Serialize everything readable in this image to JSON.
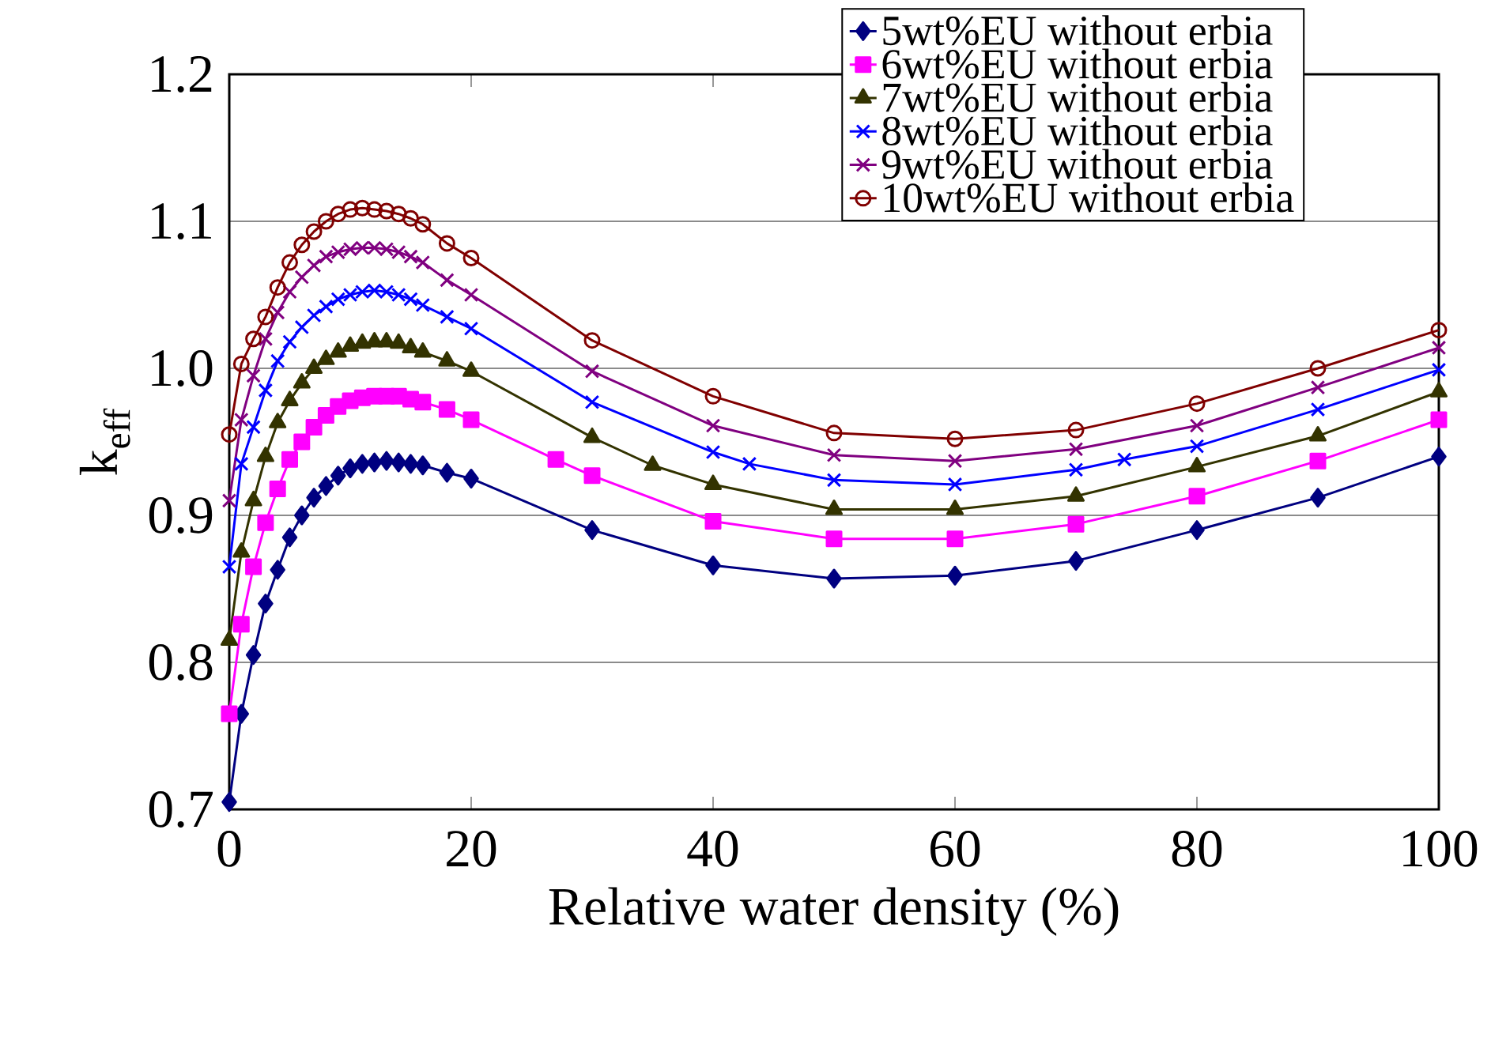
{
  "chart_data": {
    "type": "line",
    "xlabel": "Relative water density (%)",
    "ylabel": "k$_{eff}$",
    "xlim": [
      0,
      100
    ],
    "ylim": [
      0.7,
      1.2
    ],
    "xticks": [
      0,
      20,
      40,
      60,
      80,
      100
    ],
    "yticks": [
      0.7,
      0.8,
      0.9,
      {
        "value": 1,
        "label": "1.0"
      },
      1.1,
      1.2
    ],
    "grid": "y",
    "legend": "top right",
    "line_style": "solid",
    "series": [
      {
        "name": "5wt%EU without erbia",
        "color": "#000080",
        "marker": "diamond",
        "x": [
          0,
          1,
          2,
          3,
          4,
          5,
          6,
          7,
          8,
          9,
          10,
          11,
          12,
          13,
          14,
          15,
          16,
          18,
          20,
          30,
          40,
          50,
          60,
          70,
          80,
          90,
          100
        ],
        "values": [
          0.705,
          0.765,
          0.805,
          0.84,
          0.863,
          0.885,
          0.9,
          0.912,
          0.92,
          0.927,
          0.932,
          0.935,
          0.936,
          0.937,
          0.936,
          0.935,
          0.934,
          0.929,
          0.925,
          0.89,
          0.866,
          0.857,
          0.859,
          0.869,
          0.89,
          0.912,
          0.94
        ]
      },
      {
        "name": "6wt%EU without erbia",
        "color": "#ff00ff",
        "marker": "square",
        "x": [
          0,
          1,
          2,
          3,
          4,
          5,
          6,
          7,
          8,
          9,
          10,
          11,
          12,
          13,
          14,
          15,
          16,
          18,
          20,
          27,
          30,
          40,
          50,
          60,
          70,
          80,
          90,
          100
        ],
        "values": [
          0.765,
          0.826,
          0.865,
          0.895,
          0.918,
          0.938,
          0.95,
          0.96,
          0.968,
          0.974,
          0.978,
          0.98,
          0.981,
          0.981,
          0.981,
          0.979,
          0.977,
          0.972,
          0.965,
          0.938,
          0.927,
          0.896,
          0.884,
          0.884,
          0.894,
          0.913,
          0.937,
          0.965
        ]
      },
      {
        "name": "7wt%EU without erbia",
        "color": "#333300",
        "marker": "triangle",
        "x": [
          0,
          1,
          2,
          3,
          4,
          5,
          6,
          7,
          8,
          9,
          10,
          11,
          12,
          13,
          14,
          15,
          16,
          18,
          20,
          30,
          35,
          40,
          50,
          60,
          70,
          80,
          90,
          100
        ],
        "values": [
          0.815,
          0.875,
          0.91,
          0.94,
          0.963,
          0.978,
          0.99,
          1.0,
          1.006,
          1.011,
          1.015,
          1.017,
          1.018,
          1.018,
          1.017,
          1.014,
          1.011,
          1.005,
          0.998,
          0.953,
          0.934,
          0.921,
          0.904,
          0.904,
          0.913,
          0.933,
          0.954,
          0.984
        ]
      },
      {
        "name": "8wt%EU without erbia",
        "color": "#0000ff",
        "marker": "cross",
        "x": [
          0,
          1,
          2,
          3,
          4,
          5,
          6,
          7,
          8,
          9,
          10,
          11,
          12,
          13,
          14,
          15,
          16,
          18,
          20,
          30,
          40,
          43,
          50,
          60,
          70,
          74,
          80,
          90,
          100
        ],
        "values": [
          0.865,
          0.935,
          0.96,
          0.985,
          1.005,
          1.018,
          1.028,
          1.036,
          1.042,
          1.047,
          1.05,
          1.052,
          1.053,
          1.052,
          1.05,
          1.047,
          1.043,
          1.035,
          1.027,
          0.977,
          0.943,
          0.935,
          0.924,
          0.921,
          0.931,
          0.938,
          0.947,
          0.972,
          0.999
        ]
      },
      {
        "name": "9wt%EU without erbia",
        "color": "#800080",
        "marker": "cross",
        "x": [
          0,
          1,
          2,
          3,
          4,
          5,
          6,
          7,
          8,
          9,
          10,
          11,
          12,
          13,
          14,
          15,
          16,
          18,
          20,
          30,
          40,
          50,
          60,
          70,
          80,
          90,
          100
        ],
        "values": [
          0.91,
          0.965,
          0.995,
          1.02,
          1.038,
          1.052,
          1.062,
          1.07,
          1.076,
          1.079,
          1.081,
          1.082,
          1.082,
          1.081,
          1.079,
          1.076,
          1.072,
          1.06,
          1.05,
          0.998,
          0.961,
          0.941,
          0.937,
          0.945,
          0.961,
          0.987,
          1.014
        ]
      },
      {
        "name": "10wt%EU without erbia",
        "color": "#800000",
        "marker": "circle",
        "x": [
          0,
          1,
          2,
          3,
          4,
          5,
          6,
          7,
          8,
          9,
          10,
          11,
          12,
          13,
          14,
          15,
          16,
          18,
          20,
          30,
          40,
          50,
          60,
          70,
          80,
          90,
          100
        ],
        "values": [
          0.955,
          1.003,
          1.02,
          1.035,
          1.055,
          1.072,
          1.084,
          1.093,
          1.1,
          1.105,
          1.108,
          1.109,
          1.108,
          1.107,
          1.105,
          1.102,
          1.098,
          1.085,
          1.075,
          1.019,
          0.981,
          0.956,
          0.952,
          0.958,
          0.976,
          1.0,
          1.026
        ]
      }
    ]
  }
}
